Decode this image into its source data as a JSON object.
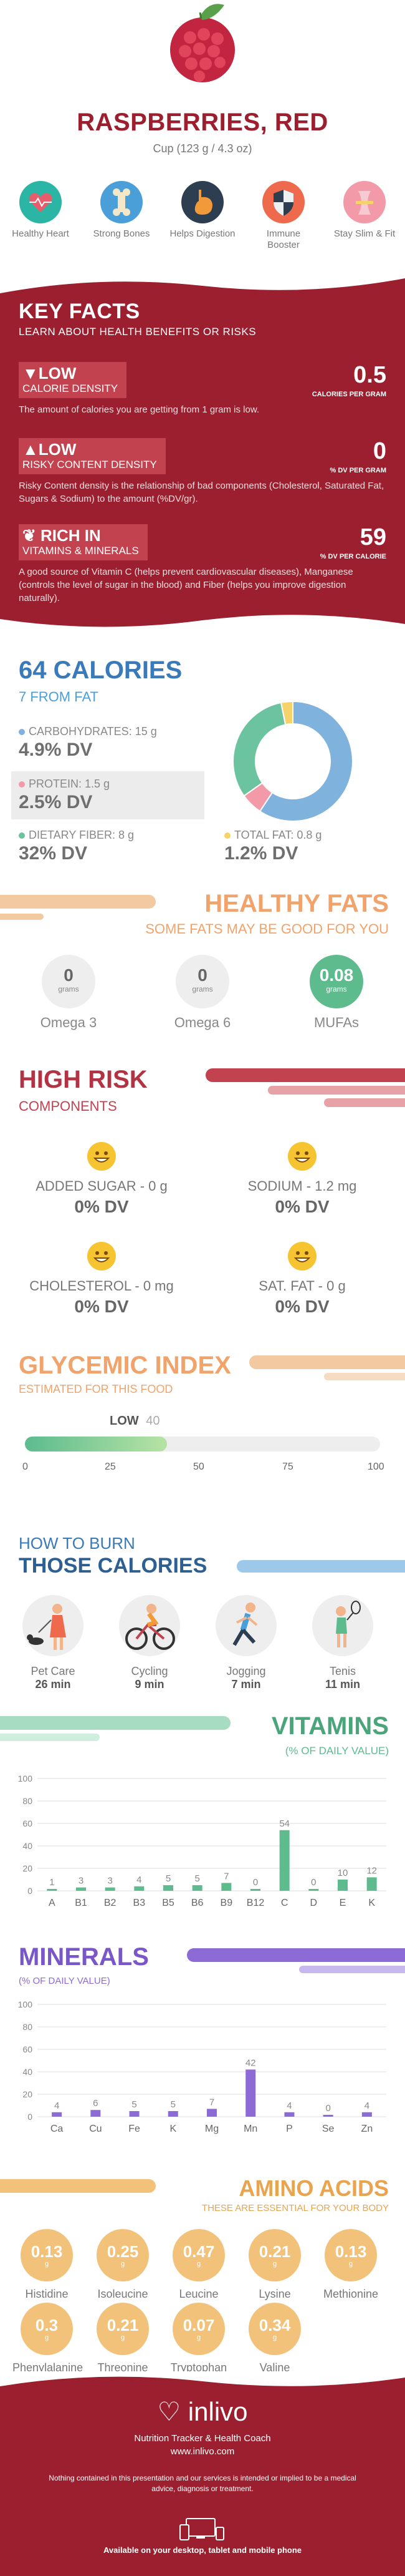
{
  "header": {
    "title": "RASPBERRIES, RED",
    "serving": "Cup (123 g / 4.3 oz)"
  },
  "benefits": [
    {
      "label": "Healthy Heart",
      "icon": "heart-icon",
      "color": "#2ab5a5"
    },
    {
      "label": "Strong Bones",
      "icon": "bone-icon",
      "color": "#4a9fd8"
    },
    {
      "label": "Helps Digestion",
      "icon": "stomach-icon",
      "color": "#2c3e50"
    },
    {
      "label": "Immune Booster",
      "icon": "shield-icon",
      "color": "#ef6a4c"
    },
    {
      "label": "Stay Slim & Fit",
      "icon": "waist-icon",
      "color": "#f29aa8"
    }
  ],
  "key_facts": {
    "title": "KEY FACTS",
    "subtitle": "LEARN ABOUT HEALTH BENEFITS OR RISKS",
    "items": [
      {
        "level": "LOW",
        "name": "CALORIE DENSITY",
        "value": "0.5",
        "unit": "CALORIES PER GRAM",
        "desc": "The amount of calories you are getting from 1 gram is low."
      },
      {
        "level": "LOW",
        "name": "RISKY CONTENT DENSITY",
        "value": "0",
        "unit": "% DV PER GRAM",
        "desc": "Risky Content density is the relationship of bad components (Cholesterol, Saturated Fat, Sugars & Sodium) to the amount (%DV/gr)."
      },
      {
        "level": "RICH IN",
        "name": "VITAMINS & MINERALS",
        "value": "59",
        "unit": "% DV PER CALORIE",
        "desc": "A good source of Vitamin C (helps prevent cardiovascular diseases), Manganese (controls the level of sugar in the blood) and Fiber (helps you improve digestion naturally)."
      }
    ]
  },
  "calories": {
    "title": "64 CALORIES",
    "from_fat": "7 FROM FAT",
    "macros": [
      {
        "label": "CARBOHYDRATES: 15 g",
        "dv": "4.9% DV",
        "color": "#7fb2dd"
      },
      {
        "label": "PROTEIN: 1.5 g",
        "dv": "2.5% DV",
        "color": "#f29aa8"
      },
      {
        "label": "DIETARY FIBER: 8 g",
        "dv": "32% DV",
        "color": "#6cc3a0"
      },
      {
        "label": "TOTAL FAT: 0.8 g",
        "dv": "1.2% DV",
        "color": "#f6d26b"
      }
    ]
  },
  "chart_data": {
    "type": "pie",
    "categories": [
      "CARBOHYDRATES",
      "PROTEIN",
      "DIETARY FIBER",
      "TOTAL FAT"
    ],
    "values": [
      15,
      1.5,
      8,
      0.8
    ],
    "colors": [
      "#7fb2dd",
      "#f29aa8",
      "#6cc3a0",
      "#f6d26b"
    ]
  },
  "healthy_fats": {
    "title": "HEALTHY FATS",
    "subtitle": "SOME FATS MAY BE GOOD FOR YOU",
    "items": [
      {
        "value": "0",
        "unit": "grams",
        "name": "Omega 3",
        "highlight": false
      },
      {
        "value": "0",
        "unit": "grams",
        "name": "Omega 6",
        "highlight": false
      },
      {
        "value": "0.08",
        "unit": "grams",
        "name": "MUFAs",
        "highlight": true
      }
    ]
  },
  "high_risk": {
    "title": "HIGH RISK",
    "subtitle": "COMPONENTS",
    "items": [
      {
        "name": "ADDED SUGAR - 0 g",
        "dv": "0% DV"
      },
      {
        "name": "SODIUM - 1.2 mg",
        "dv": "0% DV"
      },
      {
        "name": "CHOLESTEROL - 0 mg",
        "dv": "0% DV"
      },
      {
        "name": "SAT. FAT - 0 g",
        "dv": "0% DV"
      }
    ]
  },
  "glycemic": {
    "title": "GLYCEMIC INDEX",
    "subtitle": "ESTIMATED FOR THIS FOOD",
    "level": "LOW",
    "value": 40,
    "value_label": "40",
    "max": 100,
    "ticks": [
      "0",
      "25",
      "50",
      "75",
      "100"
    ]
  },
  "burn": {
    "title1": "HOW TO BURN",
    "title2": "THOSE CALORIES",
    "items": [
      {
        "name": "Pet Care",
        "time": "26 min",
        "icon": "dog-walking-icon"
      },
      {
        "name": "Cycling",
        "time": "9 min",
        "icon": "cycling-icon"
      },
      {
        "name": "Jogging",
        "time": "7 min",
        "icon": "jogging-icon"
      },
      {
        "name": "Tenis",
        "time": "11 min",
        "icon": "tennis-icon"
      }
    ]
  },
  "vitamins": {
    "title": "VITAMINS",
    "subtitle": "(% OF DAILY VALUE)",
    "chart_data": {
      "type": "bar",
      "categories": [
        "A",
        "B1",
        "B2",
        "B3",
        "B5",
        "B6",
        "B9",
        "B12",
        "C",
        "D",
        "E",
        "K"
      ],
      "values": [
        1,
        3,
        3,
        4,
        5,
        5,
        7,
        0,
        54,
        0,
        10,
        12
      ],
      "value_labels": [
        "1",
        "3",
        "3",
        "4",
        "5",
        "5",
        "7",
        "0",
        "54",
        "0",
        "10",
        "12"
      ],
      "ylim": [
        0,
        100
      ],
      "yticks": [
        "0",
        "20",
        "40",
        "60",
        "80",
        "100"
      ],
      "color": "#5dbb8e"
    }
  },
  "minerals": {
    "title": "MINERALS",
    "subtitle": "(% OF DAILY VALUE)",
    "chart_data": {
      "type": "bar",
      "categories": [
        "Ca",
        "Cu",
        "Fe",
        "K",
        "Mg",
        "Mn",
        "P",
        "Se",
        "Zn"
      ],
      "values": [
        4,
        6,
        5,
        5,
        7,
        42,
        4,
        0,
        4
      ],
      "value_labels": [
        "4",
        "6",
        "5",
        "5",
        "7",
        "42",
        "4",
        "0",
        "4"
      ],
      "ylim": [
        0,
        100
      ],
      "yticks": [
        "0",
        "20",
        "40",
        "60",
        "80",
        "100"
      ],
      "color": "#8c6bd6"
    }
  },
  "amino": {
    "title": "AMINO ACIDS",
    "subtitle": "THESE ARE ESSENTIAL FOR YOUR BODY",
    "unit": "g",
    "row1": [
      {
        "value": "0.13",
        "name": "Histidine"
      },
      {
        "value": "0.25",
        "name": "Isoleucine"
      },
      {
        "value": "0.47",
        "name": "Leucine"
      },
      {
        "value": "0.21",
        "name": "Lysine"
      },
      {
        "value": "0.13",
        "name": "Methionine"
      }
    ],
    "row2": [
      {
        "value": "0.3",
        "name": "Phenylalanine"
      },
      {
        "value": "0.21",
        "name": "Threonine"
      },
      {
        "value": "0.07",
        "name": "Tryptophan"
      },
      {
        "value": "0.34",
        "name": "Valine"
      }
    ]
  },
  "footer": {
    "logo": "inlivo",
    "tagline": "Nutrition Tracker & Health Coach",
    "url": "www.inlivo.com",
    "disclaimer": "Nothing contained in this presentation and our services is intended or implied to be a medical advice, diagnosis or treatment.",
    "available": "Available on your desktop, tablet and mobile phone"
  }
}
